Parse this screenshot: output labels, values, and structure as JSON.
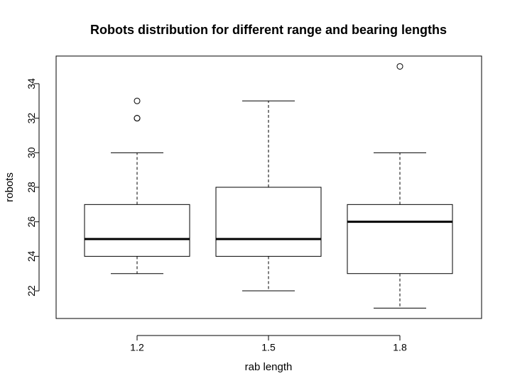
{
  "chart_data": {
    "type": "box",
    "title": "Robots distribution for different range and bearing lengths",
    "xlabel": "rab length",
    "ylabel": "robots",
    "categories": [
      "1.2",
      "1.5",
      "1.8"
    ],
    "y_ticks": [
      22,
      24,
      26,
      28,
      30,
      32,
      34
    ],
    "ylim": [
      20.4,
      35.6
    ],
    "boxes": [
      {
        "category": "1.2",
        "whisker_low": 23,
        "q1": 24,
        "median": 25,
        "q3": 27,
        "whisker_high": 30,
        "outliers": [
          32,
          32,
          33
        ]
      },
      {
        "category": "1.5",
        "whisker_low": 22,
        "q1": 24,
        "median": 25,
        "q3": 28,
        "whisker_high": 33,
        "outliers": []
      },
      {
        "category": "1.8",
        "whisker_low": 21,
        "q1": 23,
        "median": 26,
        "q3": 27,
        "whisker_high": 30,
        "outliers": [
          35
        ]
      }
    ]
  }
}
